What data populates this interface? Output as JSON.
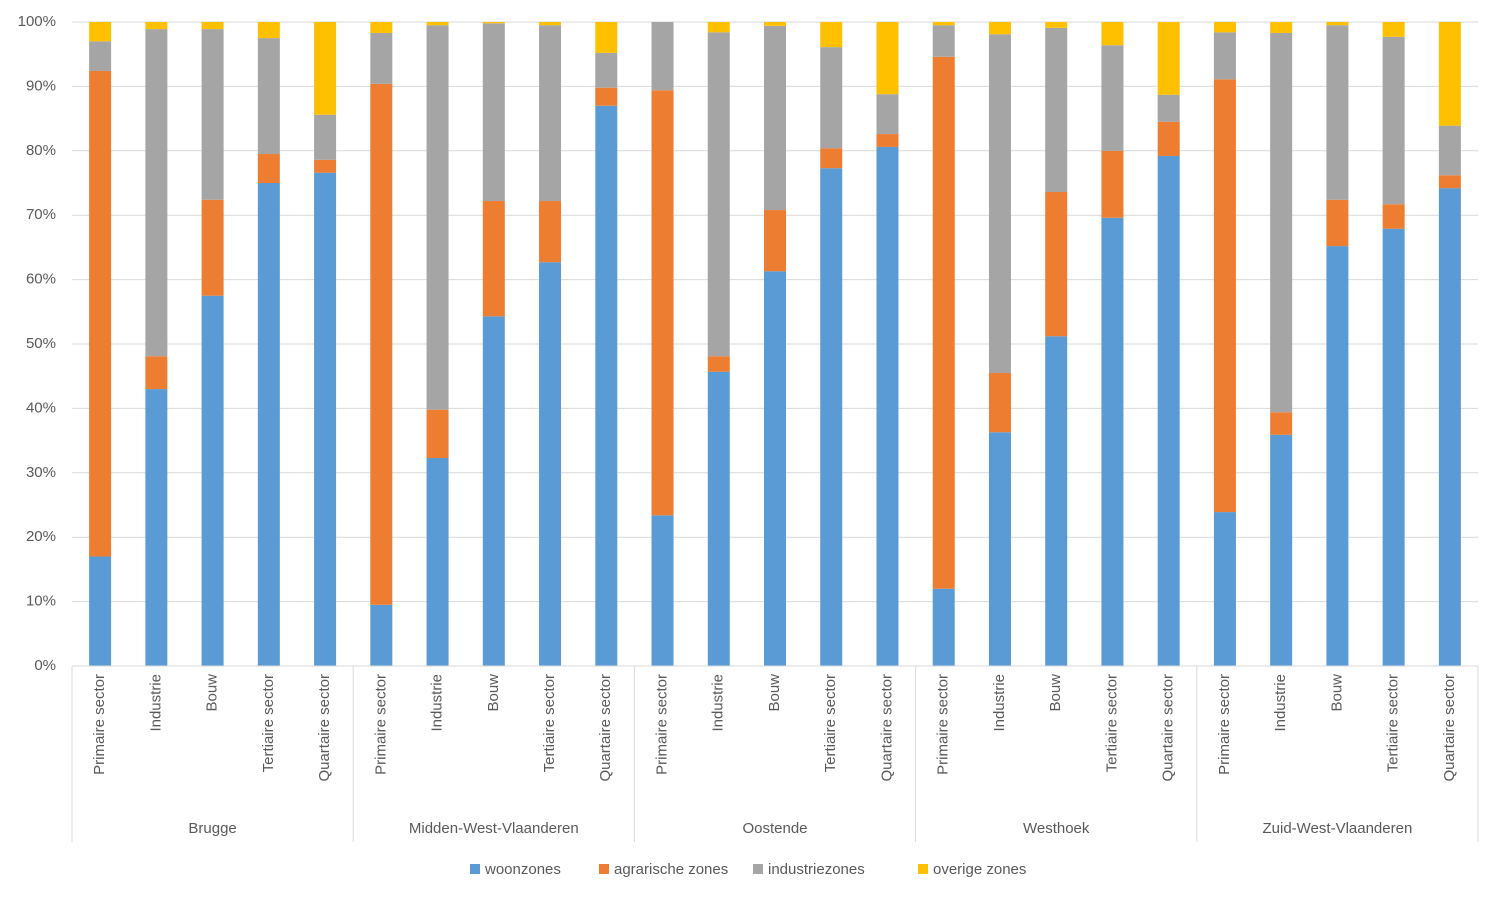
{
  "chart_data": {
    "type": "stacked_bar_100",
    "groups": [
      "Brugge",
      "Midden-West-Vlaanderen",
      "Oostende",
      "Westhoek",
      "Zuid-West-Vlaanderen"
    ],
    "categories": [
      "Primaire sector",
      "Industrie",
      "Bouw",
      "Tertiaire sector",
      "Quartaire sector",
      "Primaire sector",
      "Industrie",
      "Bouw",
      "Tertiaire sector",
      "Quartaire sector",
      "Primaire sector",
      "Industrie",
      "Bouw",
      "Tertiaire sector",
      "Quartaire sector",
      "Primaire sector",
      "Industrie",
      "Bouw",
      "Tertiaire sector",
      "Quartaire sector",
      "Primaire sector",
      "Industrie",
      "Bouw",
      "Tertiaire sector",
      "Quartaire sector"
    ],
    "series": [
      {
        "name": "woonzones",
        "color": "#5b9bd5",
        "values": [
          17.0,
          43.0,
          57.5,
          75.0,
          76.6,
          9.5,
          32.3,
          54.3,
          62.7,
          87.0,
          23.4,
          45.7,
          61.3,
          77.3,
          80.6,
          12.0,
          36.3,
          51.2,
          69.6,
          79.2,
          23.9,
          35.9,
          65.2,
          67.9,
          74.2
        ]
      },
      {
        "name": "agrarische zones",
        "color": "#ed7d31",
        "values": [
          75.4,
          5.1,
          14.9,
          4.5,
          2.0,
          80.9,
          7.5,
          17.9,
          9.5,
          2.8,
          66.0,
          2.4,
          9.5,
          3.1,
          2.0,
          82.6,
          9.2,
          22.4,
          10.4,
          5.3,
          67.2,
          3.5,
          7.2,
          3.8,
          2.0
        ]
      },
      {
        "name": "industriezones",
        "color": "#a5a5a5",
        "values": [
          4.6,
          50.8,
          26.5,
          18.0,
          7.0,
          7.9,
          59.7,
          27.6,
          27.3,
          5.4,
          10.6,
          50.3,
          28.6,
          15.7,
          6.2,
          4.9,
          52.6,
          25.5,
          16.4,
          4.2,
          7.3,
          58.9,
          27.1,
          26.0,
          7.7
        ]
      },
      {
        "name": "overige zones",
        "color": "#ffc000",
        "values": [
          3.0,
          1.1,
          1.1,
          2.5,
          14.4,
          1.7,
          0.5,
          0.2,
          0.5,
          4.8,
          0.0,
          1.6,
          0.6,
          3.9,
          11.2,
          0.5,
          1.9,
          0.9,
          3.6,
          11.3,
          1.6,
          1.7,
          0.5,
          2.3,
          16.1
        ]
      }
    ],
    "ylim": [
      0,
      100
    ],
    "yticks": [
      {
        "value": 0,
        "label": "0%"
      },
      {
        "value": 10,
        "label": "10%"
      },
      {
        "value": 20,
        "label": "20%"
      },
      {
        "value": 30,
        "label": "30%"
      },
      {
        "value": 40,
        "label": "40%"
      },
      {
        "value": 50,
        "label": "50%"
      },
      {
        "value": 60,
        "label": "60%"
      },
      {
        "value": 70,
        "label": "70%"
      },
      {
        "value": 80,
        "label": "80%"
      },
      {
        "value": 90,
        "label": "90%"
      },
      {
        "value": 100,
        "label": "100%"
      }
    ],
    "grid": true,
    "legend": "bottom"
  }
}
